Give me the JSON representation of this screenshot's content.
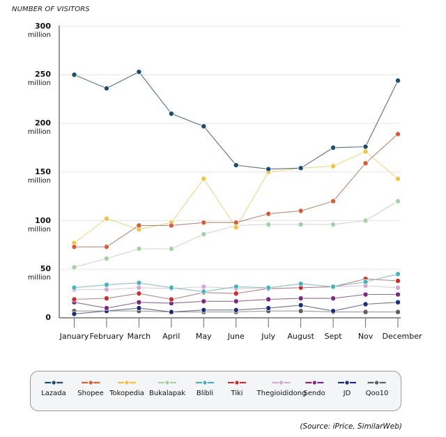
{
  "chart_data": {
    "type": "line",
    "title": "",
    "ylabel": "NUMBER OF VISITORS",
    "xlabel": "",
    "ylim": [
      0,
      300
    ],
    "y_ticks": [
      {
        "value": 0,
        "num": "0",
        "unit": ""
      },
      {
        "value": 50,
        "num": "50",
        "unit": "million"
      },
      {
        "value": 100,
        "num": "100",
        "unit": "million"
      },
      {
        "value": 150,
        "num": "150",
        "unit": "million"
      },
      {
        "value": 200,
        "num": "200",
        "unit": "million"
      },
      {
        "value": 250,
        "num": "250",
        "unit": "million"
      },
      {
        "value": 300,
        "num": "300",
        "unit": "million"
      }
    ],
    "grid": true,
    "legend_position": "bottom",
    "categories": [
      "January",
      "February",
      "March",
      "April",
      "May",
      "June",
      "July",
      "August",
      "Sept",
      "Nov",
      "December"
    ],
    "series": [
      {
        "name": "Lazada",
        "color": "#1d4e6b",
        "values": [
          250,
          236,
          253,
          210,
          197,
          157,
          153,
          154,
          175,
          176,
          244
        ]
      },
      {
        "name": "Shopee",
        "color": "#d0603a",
        "line_color": "#b08a7c",
        "values": [
          73,
          73,
          95,
          95,
          98,
          98,
          107,
          110,
          120,
          159,
          189
        ]
      },
      {
        "name": "Tokopedia",
        "color": "#f0c24a",
        "line_color": "#ecd78e",
        "values": [
          77,
          102,
          91,
          98,
          143,
          93,
          150,
          154,
          156,
          171,
          143
        ]
      },
      {
        "name": "Bukalapak",
        "color": "#a7cfa8",
        "line_color": "#d3d3d3",
        "values": [
          52,
          61,
          71,
          71,
          86,
          95,
          96,
          96,
          96,
          100,
          120
        ]
      },
      {
        "name": "Blibli",
        "color": "#4fb2bb",
        "line_color": "#8cbfc3",
        "values": [
          31,
          34,
          36,
          31,
          27,
          32,
          31,
          35,
          32,
          37,
          45
        ]
      },
      {
        "name": "Tiki",
        "color": "#c2332f",
        "line_color": "#b08a8e",
        "values": [
          19,
          20,
          25,
          19,
          26,
          25,
          30,
          31,
          32,
          40,
          38
        ]
      },
      {
        "name": "Thegioididong",
        "color": "#d3a9cf",
        "line_color": "#d8cdd6",
        "values": [
          29,
          29,
          31,
          30,
          32,
          30,
          30,
          31,
          32,
          33,
          31
        ]
      },
      {
        "name": "Sendo",
        "color": "#7b2b7f",
        "line_color": "#8d6d8f",
        "values": [
          16,
          10,
          16,
          15,
          17,
          17,
          19,
          20,
          20,
          24,
          24
        ]
      },
      {
        "name": "JD",
        "color": "#1f2d78",
        "line_color": "#6a7090",
        "values": [
          4,
          7,
          10,
          6,
          8,
          8,
          10,
          13,
          7,
          14,
          16
        ]
      },
      {
        "name": "Qoo10",
        "color": "#5e5e60",
        "line_color": "#9a9a9a",
        "values": [
          7,
          7,
          7,
          6,
          6,
          6,
          7,
          7,
          6,
          6,
          6
        ]
      }
    ],
    "source": "(Source: iPrice, SimilarWeb)"
  }
}
